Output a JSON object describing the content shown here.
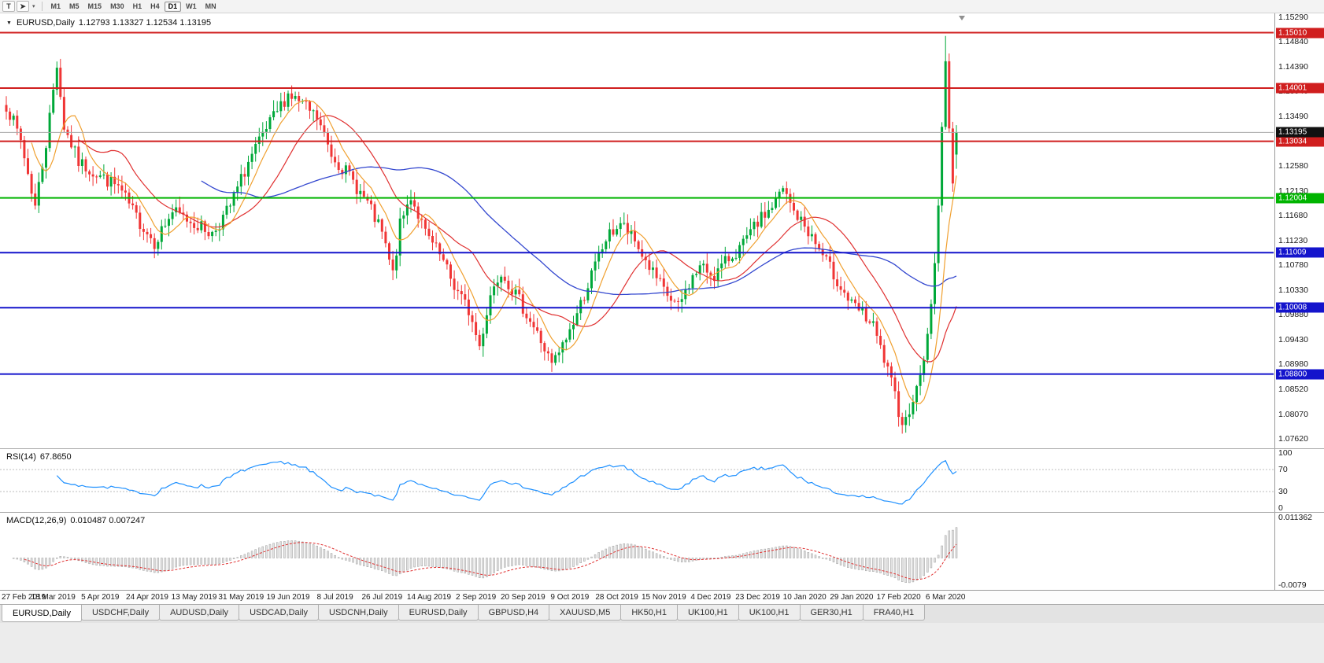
{
  "toolbar": {
    "text_tool_label": "T",
    "cursor_tool_icon": "cursor-icon",
    "timeframes": [
      "M1",
      "M5",
      "M15",
      "M30",
      "H1",
      "H4",
      "D1",
      "W1",
      "MN"
    ],
    "active_timeframe": "D1"
  },
  "chart": {
    "header": {
      "symbol": "EURUSD,Daily",
      "quote": "1.12793 1.13327 1.12534 1.13195"
    },
    "price_axis_labels": [
      "1.15290",
      "1.14840",
      "1.14390",
      "1.13940",
      "1.13490",
      "1.13040",
      "1.12580",
      "1.12130",
      "1.11680",
      "1.11230",
      "1.10780",
      "1.10330",
      "1.09880",
      "1.09430",
      "1.08980",
      "1.08520",
      "1.08070",
      "1.07620"
    ],
    "current_price": {
      "label": "1.13195",
      "price": 1.13195,
      "badge_color": "#111111"
    },
    "levels": [
      {
        "price": 1.1501,
        "label": "1.15010",
        "kind": "resistance",
        "color": "#d01e1e"
      },
      {
        "price": 1.14001,
        "label": "1.14001",
        "kind": "resistance",
        "color": "#d01e1e"
      },
      {
        "price": 1.13034,
        "label": "1.13034",
        "kind": "resistance",
        "color": "#d01e1e"
      },
      {
        "price": 1.12004,
        "label": "1.12004",
        "kind": "pivot",
        "color": "#00b400"
      },
      {
        "price": 1.11009,
        "label": "1.11009",
        "kind": "support",
        "color": "#1414cc"
      },
      {
        "price": 1.10008,
        "label": "1.10008",
        "kind": "support",
        "color": "#1414cc"
      },
      {
        "price": 1.088,
        "label": "1.08800",
        "kind": "support",
        "color": "#1414cc"
      }
    ],
    "date_axis": [
      "27 Feb 2019",
      "18 Mar 2019",
      "5 Apr 2019",
      "24 Apr 2019",
      "13 May 2019",
      "31 May 2019",
      "19 Jun 2019",
      "8 Jul 2019",
      "26 Jul 2019",
      "14 Aug 2019",
      "2 Sep 2019",
      "20 Sep 2019",
      "9 Oct 2019",
      "28 Oct 2019",
      "15 Nov 2019",
      "4 Dec 2019",
      "23 Dec 2019",
      "10 Jan 2020",
      "29 Jan 2020",
      "17 Feb 2020",
      "6 Mar 2020"
    ]
  },
  "rsi": {
    "name": "RSI(14)",
    "value": "67.8650",
    "axis_levels": [
      100,
      70,
      30,
      0
    ]
  },
  "macd": {
    "name": "MACD(12,26,9)",
    "values": "0.010487 0.007247",
    "axis_max": "0.011362",
    "axis_min": "-0.0079"
  },
  "tabs": [
    "EURUSD,Daily",
    "USDCHF,Daily",
    "AUDUSD,Daily",
    "USDCAD,Daily",
    "USDCNH,Daily",
    "EURUSD,Daily",
    "GBPUSD,H4",
    "XAUUSD,M5",
    "HK50,H1",
    "UK100,H1",
    "UK100,H1",
    "GER30,H1",
    "FRA40,H1"
  ],
  "active_tab_index": 0,
  "chart_data": {
    "type": "candlestick",
    "symbol": "EURUSD",
    "timeframe": "Daily",
    "candle_count": 264,
    "price_scale": {
      "max": 1.1536,
      "min": 1.0745
    },
    "last_candle": {
      "open": 1.12793,
      "high": 1.13327,
      "low": 1.12534,
      "close": 1.13195
    },
    "spike_index": 260,
    "spike_high": 1.1495,
    "close_anchors": [
      [
        0,
        1.137
      ],
      [
        4,
        1.1305
      ],
      [
        8,
        1.1185
      ],
      [
        11,
        1.13
      ],
      [
        14,
        1.1445
      ],
      [
        16,
        1.133
      ],
      [
        20,
        1.1265
      ],
      [
        26,
        1.124
      ],
      [
        31,
        1.122
      ],
      [
        36,
        1.1165
      ],
      [
        41,
        1.112
      ],
      [
        46,
        1.1175
      ],
      [
        52,
        1.1155
      ],
      [
        57,
        1.1135
      ],
      [
        62,
        1.1185
      ],
      [
        67,
        1.1265
      ],
      [
        73,
        1.1335
      ],
      [
        78,
        1.139
      ],
      [
        82,
        1.137
      ],
      [
        86,
        1.1345
      ],
      [
        90,
        1.128
      ],
      [
        95,
        1.124
      ],
      [
        100,
        1.119
      ],
      [
        104,
        1.1135
      ],
      [
        107,
        1.106
      ],
      [
        109,
        1.115
      ],
      [
        112,
        1.1205
      ],
      [
        116,
        1.1135
      ],
      [
        120,
        1.1095
      ],
      [
        124,
        1.104
      ],
      [
        128,
        1.0995
      ],
      [
        131,
        1.093
      ],
      [
        134,
        1.1025
      ],
      [
        137,
        1.107
      ],
      [
        140,
        1.1035
      ],
      [
        144,
        1.099
      ],
      [
        148,
        1.094
      ],
      [
        151,
        1.0895
      ],
      [
        154,
        1.093
      ],
      [
        158,
        1.099
      ],
      [
        162,
        1.106
      ],
      [
        166,
        1.1125
      ],
      [
        170,
        1.1155
      ],
      [
        174,
        1.112
      ],
      [
        178,
        1.1075
      ],
      [
        182,
        1.103
      ],
      [
        186,
        1.1
      ],
      [
        189,
        1.1045
      ],
      [
        192,
        1.1075
      ],
      [
        196,
        1.106
      ],
      [
        200,
        1.109
      ],
      [
        204,
        1.1115
      ],
      [
        208,
        1.1155
      ],
      [
        212,
        1.1185
      ],
      [
        215,
        1.1215
      ],
      [
        218,
        1.1175
      ],
      [
        222,
        1.114
      ],
      [
        226,
        1.1095
      ],
      [
        230,
        1.105
      ],
      [
        234,
        1.1005
      ],
      [
        237,
        1.099
      ],
      [
        240,
        1.0965
      ],
      [
        243,
        1.0905
      ],
      [
        246,
        1.084
      ],
      [
        248,
        1.079
      ],
      [
        250,
        1.081
      ],
      [
        252,
        1.0855
      ],
      [
        254,
        1.0905
      ],
      [
        256,
        1.1005
      ],
      [
        257,
        1.108
      ],
      [
        258,
        1.119
      ],
      [
        259,
        1.133
      ],
      [
        260,
        1.1445
      ],
      [
        261,
        1.133
      ],
      [
        262,
        1.123
      ],
      [
        263,
        1.132
      ]
    ],
    "noise": 0.0013,
    "moving_averages": [
      {
        "period": 8,
        "color": "#f0a030"
      },
      {
        "period": 21,
        "color": "#e03030"
      },
      {
        "period": 55,
        "color": "#3347cf"
      }
    ],
    "colors": {
      "up": "#00a839",
      "down": "#f03535",
      "hline_red": "#d01e1e",
      "hline_green": "#00cc00",
      "hline_blue": "#1414cc",
      "current_line": "#a8a8a8",
      "rsi_line": "#1e90ff",
      "rsi_level": "#bcbcbc",
      "macd_hist_fill": "#e2e2e2",
      "macd_hist_stroke": "#9e9e9e",
      "macd_signal": "#e03030"
    },
    "rsi": {
      "period": 14,
      "current": 67.865,
      "levels": [
        70,
        30
      ]
    },
    "macd": {
      "fast": 12,
      "slow": 26,
      "signal": 9,
      "current_main": 0.010487,
      "current_signal": 0.007247,
      "scale_max": 0.0126,
      "scale_min": -0.0086
    }
  }
}
